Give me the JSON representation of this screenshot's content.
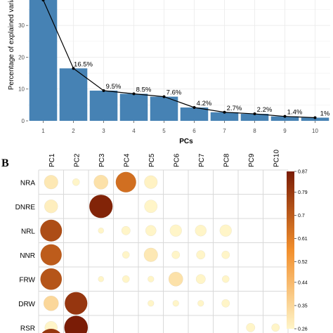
{
  "chart_data": [
    {
      "type": "bar",
      "categories": [
        "1",
        "2",
        "3",
        "4",
        "5",
        "6",
        "7",
        "8",
        "9",
        "10"
      ],
      "values": [
        38.0,
        16.5,
        9.5,
        8.5,
        7.6,
        4.2,
        2.7,
        2.2,
        1.4,
        1.0
      ],
      "labels": [
        "",
        "16.5%",
        "9.5%",
        "8.5%",
        "7.6%",
        "4.2%",
        "2.7%",
        "2.2%",
        "1.4%",
        "1%"
      ],
      "yticks": [
        "0",
        "10",
        "20",
        "30"
      ],
      "ylim": [
        0,
        38
      ],
      "xlabel": "PCs",
      "ylabel": "Percentage of explained varia",
      "bar_color": "#4682b4",
      "line_color": "#000000",
      "grid": true
    },
    {
      "type": "heatmap",
      "panel_label": "B",
      "columns": [
        "PC1",
        "PC2",
        "PC3",
        "PC4",
        "PC5",
        "PC6",
        "PC7",
        "PC8",
        "PC9",
        "PC10"
      ],
      "rows": [
        "NRA",
        "DNRE",
        "NRL",
        "NNR",
        "FRW",
        "DRW",
        "RSR"
      ],
      "values": [
        [
          0.3,
          0.08,
          0.32,
          0.65,
          0.27,
          0.0,
          0.0,
          0.0,
          0.0,
          0.0
        ],
        [
          0.28,
          0.0,
          0.85,
          0.0,
          0.26,
          0.0,
          0.0,
          0.0,
          0.0,
          0.0
        ],
        [
          0.74,
          0.0,
          0.05,
          0.12,
          0.18,
          0.22,
          0.2,
          0.22,
          0.0,
          0.0
        ],
        [
          0.7,
          0.0,
          0.0,
          0.08,
          0.3,
          0.1,
          0.12,
          0.1,
          0.0,
          0.0
        ],
        [
          0.72,
          0.0,
          0.05,
          0.08,
          0.06,
          0.32,
          0.14,
          0.08,
          0.0,
          0.0
        ],
        [
          0.35,
          0.8,
          0.0,
          0.0,
          0.06,
          0.06,
          0.06,
          0.1,
          0.0,
          0.0
        ],
        [
          0.25,
          0.87,
          0.0,
          0.0,
          0.0,
          0.0,
          0.0,
          0.0,
          0.12,
          0.1
        ]
      ],
      "colorbar_ticks": [
        "0.87",
        "0.79",
        "0.7",
        "0.61",
        "0.52",
        "0.44",
        "0.35",
        "0.26"
      ],
      "colorbar_range": [
        0.26,
        0.87
      ],
      "color_low": "#fff5c8",
      "color_mid": "#f28f2c",
      "color_high": "#7a1c06"
    }
  ]
}
